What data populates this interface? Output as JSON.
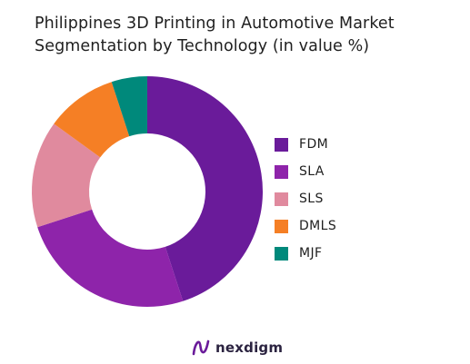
{
  "chart_data": {
    "type": "pie",
    "title_lines": [
      "Philippines 3D Printing in Automotive Market",
      "Segmentation by Technology (in value %)"
    ],
    "categories": [
      "FDM",
      "SLA",
      "SLS",
      "DMLS",
      "MJF"
    ],
    "values": [
      45,
      25,
      15,
      10,
      5
    ],
    "colors": [
      "#6a1b9a",
      "#8e24aa",
      "#e08a9e",
      "#f57f25",
      "#00897b"
    ],
    "donut": true,
    "legend_position": "right"
  },
  "brand": {
    "name": "nexdigm",
    "color": "#6a1b9a"
  }
}
